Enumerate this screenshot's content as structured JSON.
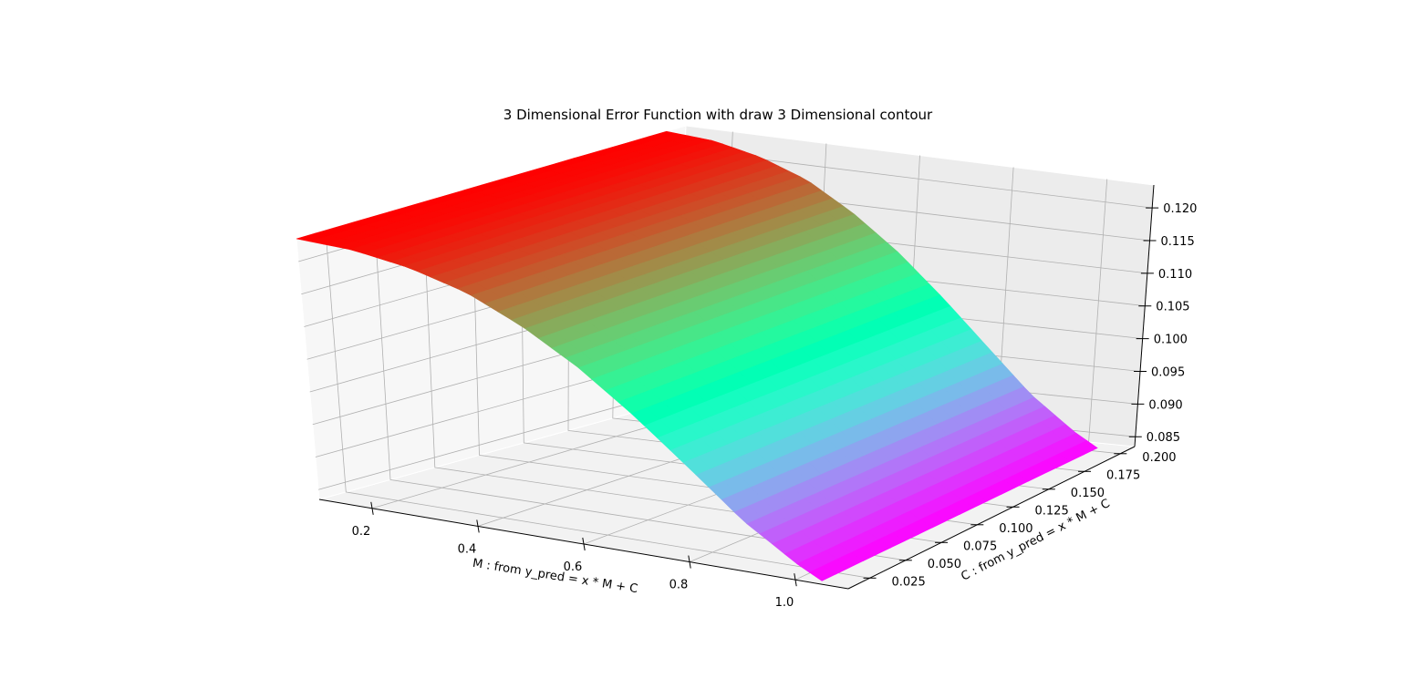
{
  "chart_data": {
    "type": "surface3d",
    "title": "3 Dimensional Error Function with draw 3 Dimensional contour",
    "xlabel": "M : from y_pred = x * M + C",
    "ylabel": "C : from y_pred = x * M + C",
    "zlabel": "",
    "xlim": [
      0.1,
      1.1
    ],
    "ylim": [
      0.01,
      0.21
    ],
    "zlim": [
      0.0835,
      0.1235
    ],
    "xticks": [
      "0.2",
      "0.4",
      "0.6",
      "0.8",
      "1.0"
    ],
    "yticks": [
      "0.025",
      "0.050",
      "0.075",
      "0.100",
      "0.125",
      "0.150",
      "0.175",
      "0.200"
    ],
    "zticks": [
      "0.085",
      "0.090",
      "0.095",
      "0.100",
      "0.105",
      "0.110",
      "0.115",
      "0.120"
    ],
    "colormap": "rainbow",
    "grid": true,
    "M_range": [
      0.1,
      1.05
    ],
    "C_range": [
      0.01,
      0.2
    ],
    "error_at_M": {
      "M": [
        0.1,
        0.2,
        0.3,
        0.4,
        0.5,
        0.6,
        0.7,
        0.8,
        0.9,
        1.0,
        1.05
      ],
      "error": [
        0.1235,
        0.123,
        0.1215,
        0.119,
        0.115,
        0.11,
        0.104,
        0.0975,
        0.091,
        0.086,
        0.084
      ]
    }
  }
}
